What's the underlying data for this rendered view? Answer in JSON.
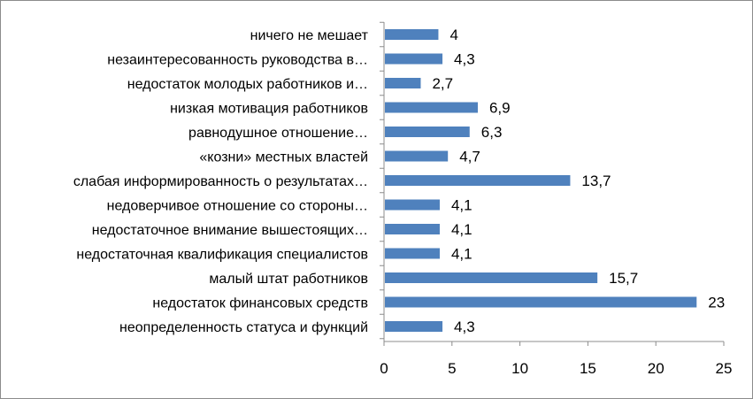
{
  "chart_data": {
    "type": "bar",
    "orientation": "horizontal",
    "title": "",
    "xlabel": "",
    "ylabel": "",
    "categories": [
      "ничего не мешает",
      "незаинтересованность руководства в…",
      "недостаток молодых работников и…",
      "низкая мотивация работников",
      "равнодушное отношение…",
      "«козни» местных властей",
      "слабая информированность о результатах…",
      "недоверчивое отношение со стороны…",
      "недостаточное внимание вышестоящих…",
      "недостаточная квалификация специалистов",
      "малый штат работников",
      "недостаток финансовых средств",
      "неопределенность статуса и функций"
    ],
    "values": [
      4,
      4.3,
      2.7,
      6.9,
      6.3,
      4.7,
      13.7,
      4.1,
      4.1,
      4.1,
      15.7,
      23,
      4.3
    ],
    "value_labels": [
      "4",
      "4,3",
      "2,7",
      "6,9",
      "6,3",
      "4,7",
      "13,7",
      "4,1",
      "4,1",
      "4,1",
      "15,7",
      "23",
      "4,3"
    ],
    "xlim": [
      0,
      25
    ],
    "xticks": [
      0,
      5,
      10,
      15,
      20,
      25
    ],
    "grid": false,
    "legend": "none",
    "bar_color": "#4f81bd"
  }
}
